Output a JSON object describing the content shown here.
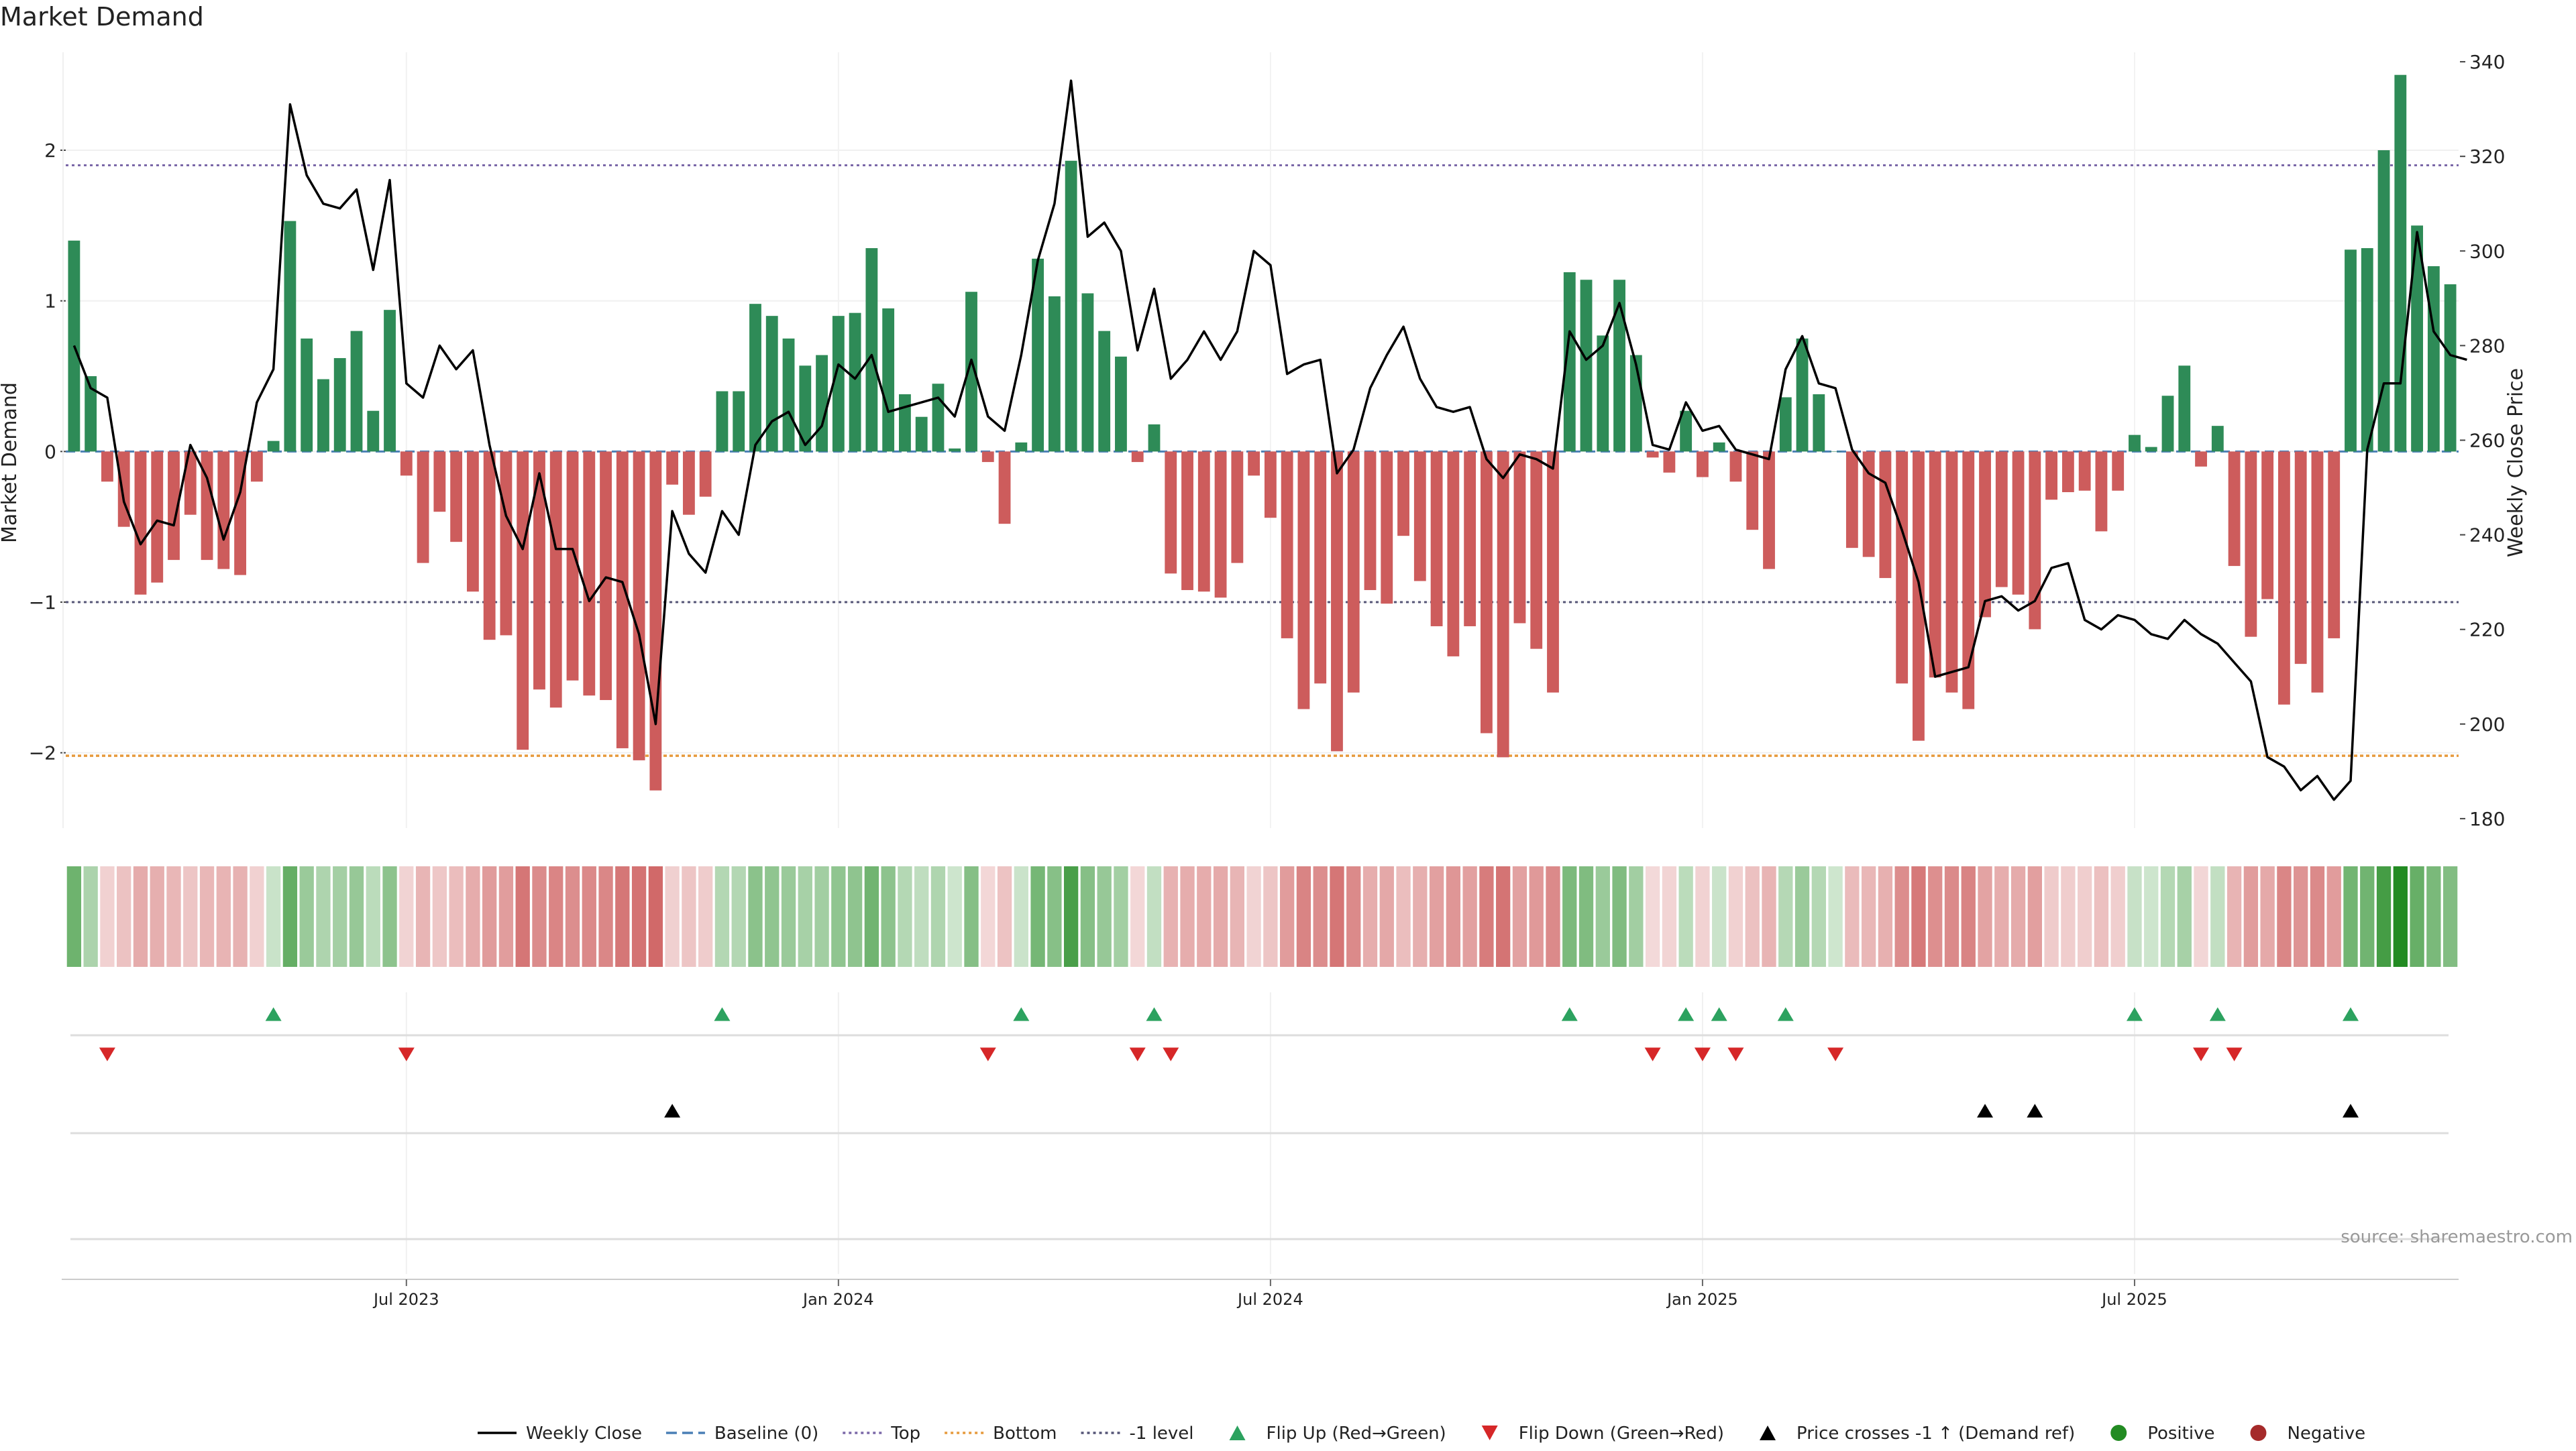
{
  "chart_data": {
    "type": "bar",
    "title": "Market Demand",
    "ylabel": "Market Demand",
    "y2label": "Weekly Close Price",
    "source": "source: sharemaestro.com",
    "ylim": [
      -2.5,
      2.65
    ],
    "y2lim": [
      178,
      342
    ],
    "yticks": [
      -2,
      -1,
      0,
      1,
      2
    ],
    "ytick_labels": [
      "−2",
      "−1",
      "0",
      "1",
      "2"
    ],
    "y2ticks": [
      180,
      200,
      220,
      240,
      260,
      280,
      300,
      320,
      340
    ],
    "grid": true,
    "legend_position": "bottom",
    "x_date_labels": [
      {
        "label": "Jul 2023",
        "index": 20
      },
      {
        "label": "Jan 2024",
        "index": 46
      },
      {
        "label": "Jul 2024",
        "index": 72
      },
      {
        "label": "Jan 2025",
        "index": 98
      },
      {
        "label": "Jul 2025",
        "index": 124
      }
    ],
    "demand": [
      1.4,
      0.5,
      -0.2,
      -0.5,
      -0.95,
      -0.87,
      -0.72,
      -0.42,
      -0.72,
      -0.78,
      -0.82,
      -0.2,
      0.07,
      1.53,
      0.75,
      0.48,
      0.62,
      0.8,
      0.27,
      0.94,
      -0.16,
      -0.74,
      -0.4,
      -0.6,
      -0.93,
      -1.25,
      -1.22,
      -1.98,
      -1.58,
      -1.7,
      -1.52,
      -1.62,
      -1.65,
      -1.97,
      -2.05,
      -2.25,
      -0.22,
      -0.42,
      -0.3,
      0.4,
      0.4,
      0.98,
      0.9,
      0.75,
      0.57,
      0.64,
      0.9,
      0.92,
      1.35,
      0.95,
      0.38,
      0.23,
      0.45,
      0.02,
      1.06,
      -0.07,
      -0.48,
      0.06,
      1.28,
      1.03,
      1.93,
      1.05,
      0.8,
      0.63,
      -0.07,
      0.18,
      -0.81,
      -0.92,
      -0.93,
      -0.97,
      -0.74,
      -0.16,
      -0.44,
      -1.24,
      -1.71,
      -1.54,
      -1.99,
      -1.6,
      -0.92,
      -1.01,
      -0.56,
      -0.86,
      -1.16,
      -1.36,
      -1.16,
      -1.87,
      -2.03,
      -1.14,
      -1.31,
      -1.6,
      1.19,
      1.14,
      0.77,
      1.14,
      0.64,
      -0.04,
      -0.14,
      0.27,
      -0.17,
      0.06,
      -0.2,
      -0.52,
      -0.78,
      0.36,
      0.75,
      0.38,
      0.0,
      -0.64,
      -0.7,
      -0.84,
      -1.54,
      -1.92,
      -1.5,
      -1.6,
      -1.71,
      -1.1,
      -0.9,
      -0.95,
      -1.18,
      -0.32,
      -0.27,
      -0.26,
      -0.53,
      -0.26,
      0.11,
      0.03,
      0.37,
      0.57,
      -0.1,
      0.17,
      -0.76,
      -1.23,
      -0.98,
      -1.68,
      -1.41,
      -1.6,
      -1.24,
      1.34,
      1.35,
      2.0,
      2.5,
      1.5,
      1.23,
      1.11
    ],
    "weekly_close": [
      280,
      271,
      269,
      247,
      238,
      243,
      242,
      259,
      252,
      239,
      249,
      268,
      275,
      331,
      316,
      310,
      309,
      313,
      296,
      315,
      272,
      269,
      280,
      275,
      279,
      259,
      244,
      237,
      253,
      237,
      237,
      226,
      231,
      230,
      219,
      200,
      245,
      236,
      232,
      245,
      240,
      259,
      264,
      266,
      259,
      263,
      276,
      273,
      278,
      266,
      267,
      268,
      269,
      265,
      277,
      265,
      262,
      278,
      298,
      310,
      336,
      303,
      306,
      300,
      279,
      292,
      273,
      277,
      283,
      277,
      283,
      300,
      297,
      274,
      276,
      277,
      253,
      258,
      271,
      278,
      284,
      273,
      267,
      266,
      267,
      256,
      252,
      257,
      256,
      254,
      283,
      277,
      280,
      289,
      276,
      259,
      258,
      268,
      262,
      263,
      258,
      257,
      256,
      275,
      282,
      272,
      271,
      258,
      253,
      251,
      241,
      230,
      210,
      211,
      212,
      226,
      227,
      224,
      226,
      233,
      234,
      222,
      220,
      223,
      222,
      219,
      218,
      222,
      219,
      217,
      213,
      209,
      193,
      191,
      186,
      189,
      184,
      188,
      258,
      272,
      272,
      304,
      283,
      278,
      277
    ]
  },
  "signals": {
    "flip_up_indices": [
      12,
      39,
      57,
      65,
      90,
      97,
      99,
      103,
      124,
      129,
      137
    ],
    "flip_down_indices": [
      2,
      20,
      55,
      64,
      66,
      95,
      98,
      100,
      106,
      128,
      130
    ],
    "price_cross_indices": [
      36,
      115,
      118,
      137
    ]
  },
  "colors": {
    "positive": "#2e8b57",
    "negative": "#cd5c5c",
    "price_line": "#000000",
    "top_line": "#7b68a8",
    "bottom_line": "#e69a3c",
    "minus1_line": "#555577",
    "baseline": "#4a7fb5",
    "flip_up": "#2ca25f",
    "flip_down": "#d62728",
    "cross": "#000000",
    "positive_dot": "#228b22",
    "negative_dot": "#a52a2a"
  },
  "reference_lines": {
    "top": 1.9,
    "bottom": -2.02,
    "minus1": -1.0
  },
  "legend": [
    {
      "label": "Weekly Close",
      "icon": "solid-line"
    },
    {
      "label": "Baseline (0)",
      "icon": "dashed-line"
    },
    {
      "label": "Top",
      "icon": "dotted-line"
    },
    {
      "label": "Bottom",
      "icon": "dotted-line"
    },
    {
      "label": "-1 level",
      "icon": "dotted-line"
    },
    {
      "label": "Flip Up (Red→Green)",
      "icon": "triangle-up"
    },
    {
      "label": "Flip Down (Green→Red)",
      "icon": "triangle-down"
    },
    {
      "label": "Price crosses -1 ↑ (Demand ref)",
      "icon": "triangle-up"
    },
    {
      "label": "Positive",
      "icon": "circle"
    },
    {
      "label": "Negative",
      "icon": "circle"
    }
  ]
}
